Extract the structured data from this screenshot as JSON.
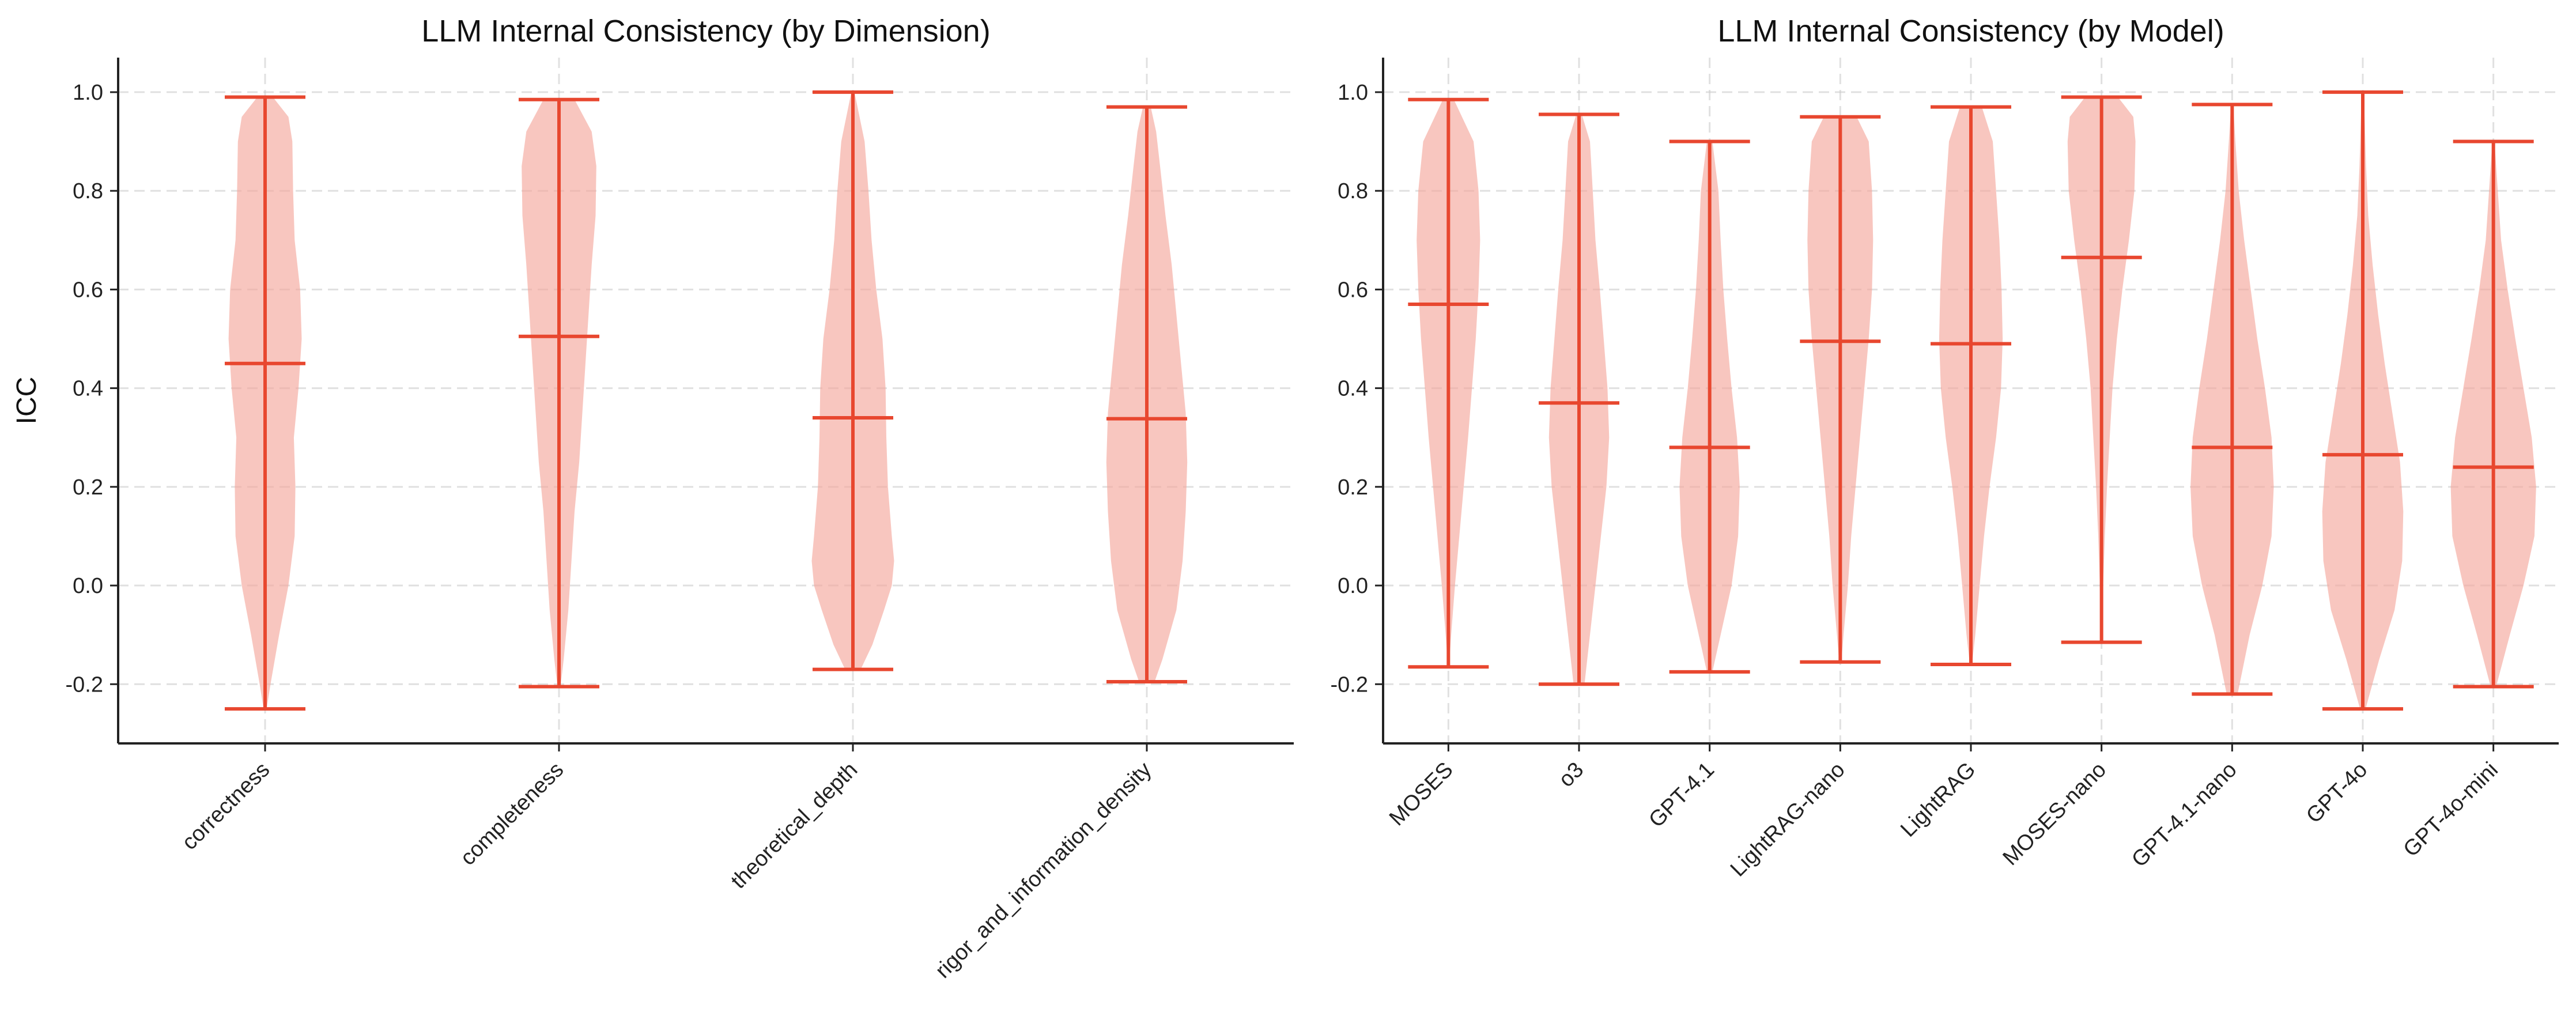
{
  "chart_data": [
    {
      "type": "violin",
      "title": "LLM Internal Consistency (by Dimension)",
      "xlabel": "",
      "ylabel": "ICC",
      "ylim": [
        -0.32,
        1.07
      ],
      "yticks": [
        -0.2,
        0.0,
        0.2,
        0.4,
        0.6,
        0.8,
        1.0
      ],
      "grid": true,
      "colors": {
        "body": "#f4a79d",
        "line": "#e8472f"
      },
      "categories": [
        "correctness",
        "completeness",
        "theoretical_depth",
        "rigor_and_information_density"
      ],
      "series": [
        {
          "category": "correctness",
          "min": -0.25,
          "median": 0.45,
          "max": 0.99,
          "density": [
            [
              -0.25,
              0.02
            ],
            [
              -0.2,
              0.07
            ],
            [
              -0.1,
              0.18
            ],
            [
              0.0,
              0.3
            ],
            [
              0.1,
              0.38
            ],
            [
              0.2,
              0.39
            ],
            [
              0.3,
              0.37
            ],
            [
              0.4,
              0.43
            ],
            [
              0.5,
              0.47
            ],
            [
              0.6,
              0.45
            ],
            [
              0.7,
              0.38
            ],
            [
              0.8,
              0.36
            ],
            [
              0.9,
              0.35
            ],
            [
              0.95,
              0.3
            ],
            [
              0.99,
              0.1
            ]
          ]
        },
        {
          "category": "completeness",
          "min": -0.205,
          "median": 0.505,
          "max": 0.985,
          "density": [
            [
              -0.205,
              0.02
            ],
            [
              -0.15,
              0.06
            ],
            [
              -0.05,
              0.12
            ],
            [
              0.05,
              0.16
            ],
            [
              0.15,
              0.2
            ],
            [
              0.25,
              0.26
            ],
            [
              0.35,
              0.3
            ],
            [
              0.45,
              0.34
            ],
            [
              0.55,
              0.38
            ],
            [
              0.65,
              0.42
            ],
            [
              0.75,
              0.47
            ],
            [
              0.85,
              0.48
            ],
            [
              0.92,
              0.42
            ],
            [
              0.985,
              0.2
            ]
          ]
        },
        {
          "category": "theoretical_depth",
          "min": -0.17,
          "median": 0.34,
          "max": 1.0,
          "density": [
            [
              -0.17,
              0.1
            ],
            [
              -0.12,
              0.25
            ],
            [
              -0.05,
              0.4
            ],
            [
              0.0,
              0.5
            ],
            [
              0.05,
              0.53
            ],
            [
              0.1,
              0.5
            ],
            [
              0.2,
              0.45
            ],
            [
              0.3,
              0.43
            ],
            [
              0.4,
              0.42
            ],
            [
              0.5,
              0.38
            ],
            [
              0.6,
              0.3
            ],
            [
              0.7,
              0.24
            ],
            [
              0.8,
              0.2
            ],
            [
              0.9,
              0.15
            ],
            [
              1.0,
              0.02
            ]
          ]
        },
        {
          "category": "rigor_and_information_density",
          "min": -0.195,
          "median": 0.338,
          "max": 0.97,
          "density": [
            [
              -0.195,
              0.1
            ],
            [
              -0.15,
              0.2
            ],
            [
              -0.05,
              0.38
            ],
            [
              0.05,
              0.46
            ],
            [
              0.15,
              0.5
            ],
            [
              0.25,
              0.52
            ],
            [
              0.35,
              0.5
            ],
            [
              0.45,
              0.44
            ],
            [
              0.55,
              0.38
            ],
            [
              0.65,
              0.32
            ],
            [
              0.75,
              0.24
            ],
            [
              0.85,
              0.17
            ],
            [
              0.92,
              0.12
            ],
            [
              0.97,
              0.05
            ]
          ]
        }
      ]
    },
    {
      "type": "violin",
      "title": "LLM Internal Consistency (by Model)",
      "xlabel": "",
      "ylabel": "",
      "ylim": [
        -0.32,
        1.07
      ],
      "yticks": [
        -0.2,
        0.0,
        0.2,
        0.4,
        0.6,
        0.8,
        1.0
      ],
      "grid": true,
      "colors": {
        "body": "#f4a79d",
        "line": "#e8472f"
      },
      "categories": [
        "MOSES",
        "o3",
        "GPT-4.1",
        "LightRAG-nano",
        "LightRAG",
        "MOSES-nano",
        "GPT-4.1-nano",
        "GPT-4o",
        "GPT-4o-mini"
      ],
      "series": [
        {
          "category": "MOSES",
          "min": -0.165,
          "median": 0.57,
          "max": 0.985,
          "density": [
            [
              -0.165,
              0.01
            ],
            [
              -0.1,
              0.05
            ],
            [
              0.0,
              0.12
            ],
            [
              0.1,
              0.2
            ],
            [
              0.2,
              0.28
            ],
            [
              0.3,
              0.36
            ],
            [
              0.4,
              0.43
            ],
            [
              0.5,
              0.5
            ],
            [
              0.6,
              0.55
            ],
            [
              0.7,
              0.58
            ],
            [
              0.8,
              0.55
            ],
            [
              0.9,
              0.46
            ],
            [
              0.985,
              0.1
            ]
          ]
        },
        {
          "category": "o3",
          "min": -0.2,
          "median": 0.37,
          "max": 0.955,
          "density": [
            [
              -0.2,
              0.1
            ],
            [
              -0.1,
              0.2
            ],
            [
              0.0,
              0.3
            ],
            [
              0.1,
              0.4
            ],
            [
              0.2,
              0.5
            ],
            [
              0.3,
              0.55
            ],
            [
              0.4,
              0.52
            ],
            [
              0.5,
              0.45
            ],
            [
              0.6,
              0.38
            ],
            [
              0.7,
              0.3
            ],
            [
              0.8,
              0.25
            ],
            [
              0.9,
              0.2
            ],
            [
              0.955,
              0.05
            ]
          ]
        },
        {
          "category": "GPT-4.1",
          "min": -0.175,
          "median": 0.28,
          "max": 0.9,
          "density": [
            [
              -0.175,
              0.05
            ],
            [
              -0.1,
              0.2
            ],
            [
              0.0,
              0.4
            ],
            [
              0.1,
              0.52
            ],
            [
              0.2,
              0.55
            ],
            [
              0.3,
              0.5
            ],
            [
              0.4,
              0.4
            ],
            [
              0.5,
              0.32
            ],
            [
              0.6,
              0.25
            ],
            [
              0.7,
              0.2
            ],
            [
              0.8,
              0.16
            ],
            [
              0.9,
              0.05
            ]
          ]
        },
        {
          "category": "LightRAG-nano",
          "min": -0.155,
          "median": 0.495,
          "max": 0.95,
          "density": [
            [
              -0.155,
              0.02
            ],
            [
              -0.1,
              0.06
            ],
            [
              0.0,
              0.14
            ],
            [
              0.1,
              0.2
            ],
            [
              0.2,
              0.28
            ],
            [
              0.3,
              0.36
            ],
            [
              0.4,
              0.44
            ],
            [
              0.5,
              0.52
            ],
            [
              0.6,
              0.58
            ],
            [
              0.7,
              0.6
            ],
            [
              0.8,
              0.58
            ],
            [
              0.9,
              0.52
            ],
            [
              0.95,
              0.3
            ]
          ]
        },
        {
          "category": "LightRAG",
          "min": -0.16,
          "median": 0.49,
          "max": 0.97,
          "density": [
            [
              -0.16,
              0.02
            ],
            [
              -0.1,
              0.08
            ],
            [
              0.0,
              0.16
            ],
            [
              0.1,
              0.24
            ],
            [
              0.2,
              0.34
            ],
            [
              0.3,
              0.46
            ],
            [
              0.4,
              0.55
            ],
            [
              0.5,
              0.58
            ],
            [
              0.6,
              0.56
            ],
            [
              0.7,
              0.52
            ],
            [
              0.8,
              0.46
            ],
            [
              0.9,
              0.4
            ],
            [
              0.97,
              0.2
            ]
          ]
        },
        {
          "category": "MOSES-nano",
          "min": -0.115,
          "median": 0.665,
          "max": 0.99,
          "density": [
            [
              -0.115,
              0.01
            ],
            [
              0.0,
              0.03
            ],
            [
              0.1,
              0.06
            ],
            [
              0.2,
              0.1
            ],
            [
              0.3,
              0.15
            ],
            [
              0.4,
              0.2
            ],
            [
              0.5,
              0.28
            ],
            [
              0.6,
              0.38
            ],
            [
              0.7,
              0.5
            ],
            [
              0.8,
              0.6
            ],
            [
              0.9,
              0.62
            ],
            [
              0.95,
              0.58
            ],
            [
              0.99,
              0.3
            ]
          ]
        },
        {
          "category": "GPT-4.1-nano",
          "min": -0.22,
          "median": 0.28,
          "max": 0.975,
          "density": [
            [
              -0.22,
              0.1
            ],
            [
              -0.1,
              0.32
            ],
            [
              0.0,
              0.55
            ],
            [
              0.1,
              0.72
            ],
            [
              0.2,
              0.76
            ],
            [
              0.3,
              0.72
            ],
            [
              0.4,
              0.6
            ],
            [
              0.5,
              0.46
            ],
            [
              0.6,
              0.34
            ],
            [
              0.7,
              0.22
            ],
            [
              0.8,
              0.12
            ],
            [
              0.9,
              0.06
            ],
            [
              0.975,
              0.02
            ]
          ]
        },
        {
          "category": "GPT-4o",
          "min": -0.25,
          "median": 0.265,
          "max": 1.0,
          "density": [
            [
              -0.25,
              0.05
            ],
            [
              -0.15,
              0.3
            ],
            [
              -0.05,
              0.58
            ],
            [
              0.05,
              0.72
            ],
            [
              0.15,
              0.74
            ],
            [
              0.25,
              0.68
            ],
            [
              0.35,
              0.54
            ],
            [
              0.45,
              0.4
            ],
            [
              0.55,
              0.28
            ],
            [
              0.65,
              0.18
            ],
            [
              0.75,
              0.1
            ],
            [
              0.85,
              0.06
            ],
            [
              1.0,
              0.02
            ]
          ]
        },
        {
          "category": "GPT-4o-mini",
          "min": -0.205,
          "median": 0.24,
          "max": 0.9,
          "density": [
            [
              -0.205,
              0.05
            ],
            [
              -0.1,
              0.3
            ],
            [
              0.0,
              0.55
            ],
            [
              0.1,
              0.75
            ],
            [
              0.2,
              0.78
            ],
            [
              0.3,
              0.7
            ],
            [
              0.4,
              0.55
            ],
            [
              0.5,
              0.4
            ],
            [
              0.6,
              0.26
            ],
            [
              0.7,
              0.14
            ],
            [
              0.8,
              0.08
            ],
            [
              0.9,
              0.02
            ]
          ]
        }
      ]
    }
  ]
}
